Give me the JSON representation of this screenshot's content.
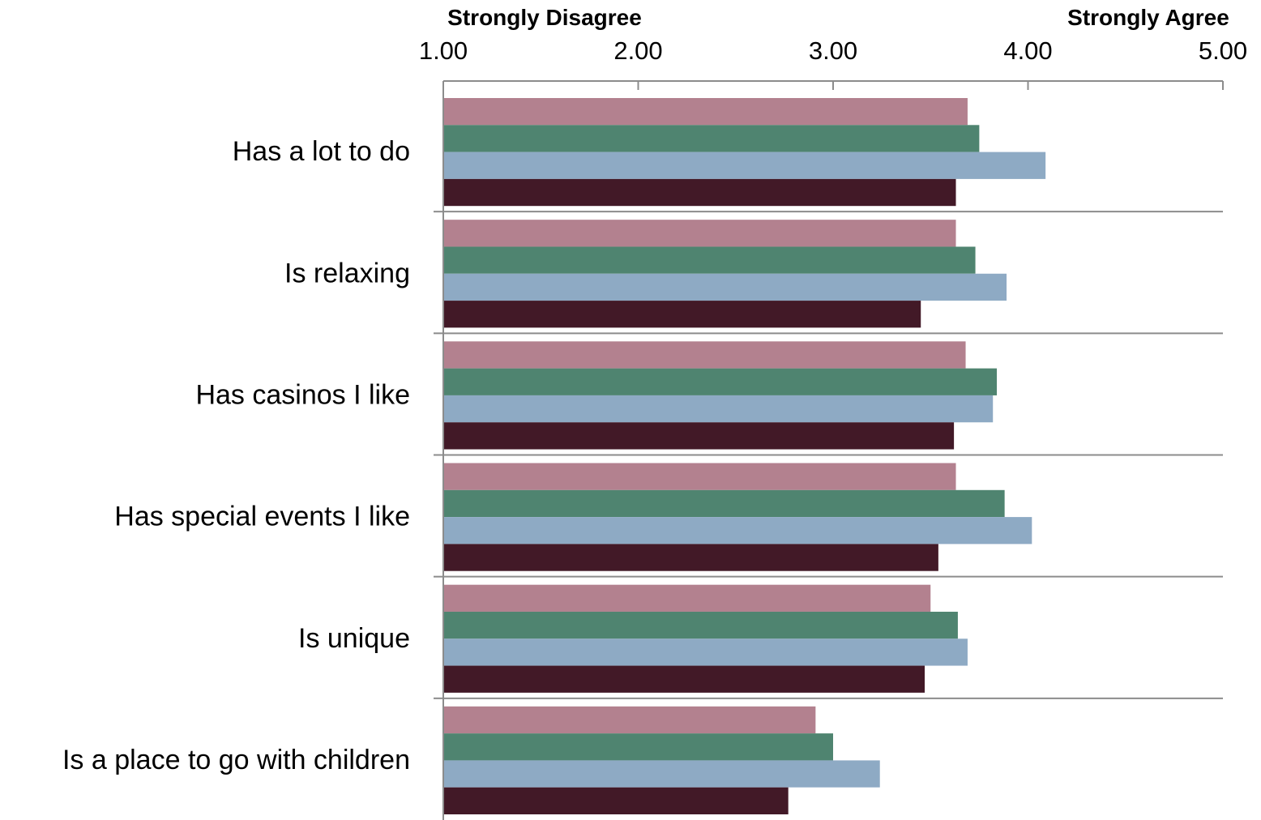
{
  "chart_data": {
    "type": "bar",
    "orientation": "horizontal",
    "axis_end_labels": {
      "left": "Strongly Disagree",
      "right": "Strongly Agree"
    },
    "xlim": [
      1.0,
      5.0
    ],
    "ticks": [
      "1.00",
      "2.00",
      "3.00",
      "4.00",
      "5.00"
    ],
    "tick_values": [
      1,
      2,
      3,
      4,
      5
    ],
    "grid": "horizontal separators between categories",
    "legend": "none",
    "categories": [
      "Has a lot to do",
      "Is relaxing",
      "Has casinos I like",
      "Has special events I like",
      "Is unique",
      "Is a place to go with children"
    ],
    "series": [
      {
        "color": "#b3818f",
        "values": [
          3.69,
          3.63,
          3.68,
          3.63,
          3.5,
          2.91
        ]
      },
      {
        "color": "#4f8470",
        "values": [
          3.75,
          3.73,
          3.84,
          3.88,
          3.64,
          3.0
        ]
      },
      {
        "color": "#8eaac4",
        "values": [
          4.09,
          3.89,
          3.82,
          4.02,
          3.69,
          3.24
        ]
      },
      {
        "color": "#421927",
        "values": [
          3.63,
          3.45,
          3.62,
          3.54,
          3.47,
          2.77
        ]
      }
    ]
  }
}
